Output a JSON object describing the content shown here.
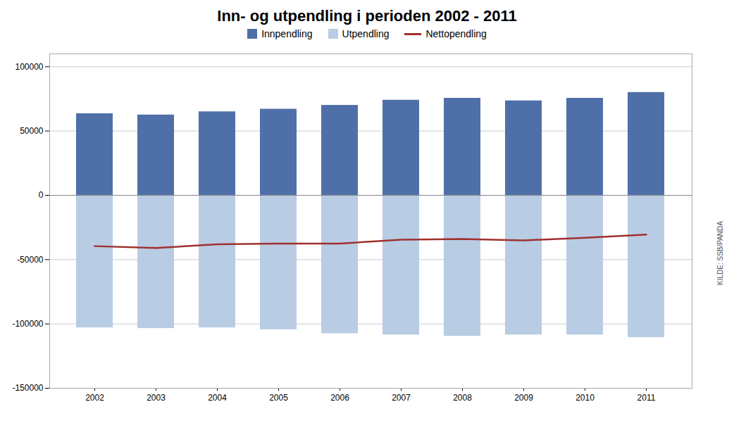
{
  "chart_data": {
    "type": "bar",
    "title": "Inn- og utpendling i perioden 2002 - 2011",
    "categories": [
      "2002",
      "2003",
      "2004",
      "2005",
      "2006",
      "2007",
      "2008",
      "2009",
      "2010",
      "2011"
    ],
    "series": [
      {
        "name": "Innpendling",
        "type": "bar",
        "color": "#4f6fa8",
        "values": [
          63500,
          62500,
          65000,
          67000,
          70000,
          74000,
          75500,
          73500,
          75500,
          80000
        ]
      },
      {
        "name": "Utpendling",
        "type": "bar",
        "color": "#b8cce4",
        "values": [
          -103000,
          -103500,
          -103000,
          -104500,
          -107500,
          -108500,
          -109500,
          -108500,
          -108500,
          -110500
        ]
      },
      {
        "name": "Nettopendling",
        "type": "line",
        "color": "#a03030",
        "values": [
          -39500,
          -41000,
          -38000,
          -37500,
          -37500,
          -34500,
          -34000,
          -35000,
          -33000,
          -30500
        ]
      }
    ],
    "ylim": [
      -150000,
      110000
    ],
    "yticks": [
      -150000,
      -100000,
      -50000,
      0,
      50000,
      100000
    ],
    "grid": true,
    "legend": "top",
    "annotations": [
      "KILDE: SSB/PANDA"
    ]
  }
}
